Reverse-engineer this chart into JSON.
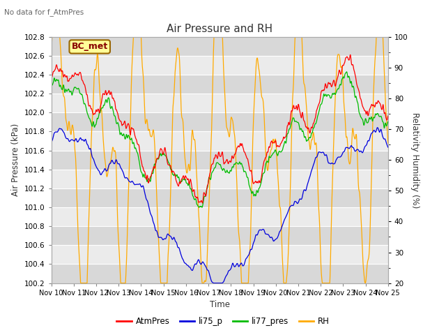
{
  "title": "Air Pressure and RH",
  "subtitle": "No data for f_AtmPres",
  "xlabel": "Time",
  "ylabel_left": "Air Pressure (kPa)",
  "ylabel_right": "Relativity Humidity (%)",
  "annotation": "BC_met",
  "ylim_left": [
    100.2,
    102.8
  ],
  "ylim_right": [
    20,
    100
  ],
  "yticks_left": [
    100.2,
    100.4,
    100.6,
    100.8,
    101.0,
    101.2,
    101.4,
    101.6,
    101.8,
    102.0,
    102.2,
    102.4,
    102.6,
    102.8
  ],
  "yticks_right": [
    20,
    30,
    40,
    50,
    60,
    70,
    80,
    90,
    100
  ],
  "xtick_labels": [
    "Nov 10",
    "Nov 11",
    "Nov 12",
    "Nov 13",
    "Nov 14",
    "Nov 15",
    "Nov 16",
    "Nov 17",
    "Nov 18",
    "Nov 19",
    "Nov 20",
    "Nov 21",
    "Nov 22",
    "Nov 23",
    "Nov 24",
    "Nov 25"
  ],
  "colors": {
    "AtmPres": "#ff0000",
    "li75_p": "#0000dd",
    "li77_pres": "#00bb00",
    "RH": "#ffaa00",
    "bg_dark": "#d8d8d8",
    "bg_light": "#ebebeb",
    "annotation_bg": "#ffff99",
    "annotation_border": "#996600"
  },
  "legend_labels": [
    "AtmPres",
    "li75_p",
    "li77_pres",
    "RH"
  ],
  "grid_color": "#ffffff"
}
